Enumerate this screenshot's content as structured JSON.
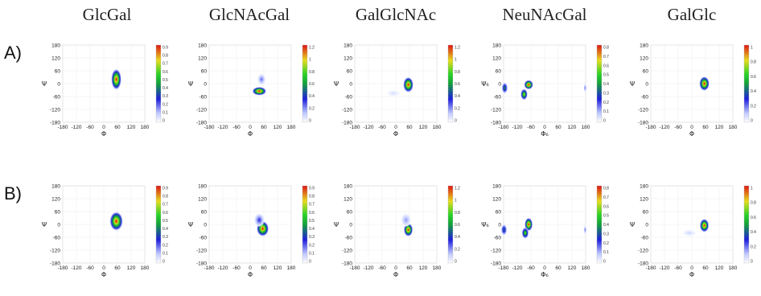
{
  "columns": [
    "GlcGal",
    "GlcNAcGal",
    "GalGlcNAc",
    "NeuNAcGal",
    "GalGlc"
  ],
  "rows": [
    "A)",
    "B)"
  ],
  "chart_data": [
    {
      "row": "A",
      "column": "GlcGal",
      "type": "heatmap",
      "xlabel": "Φ",
      "ylabel": "Ψ",
      "xlim": [
        -180,
        180
      ],
      "ylim": [
        -180,
        180
      ],
      "ticks": [
        "-180",
        "-120",
        "-60",
        "0",
        "60",
        "120",
        "180"
      ],
      "yticks": [
        "180",
        "120",
        "60",
        "0",
        "-60",
        "-120",
        "-180"
      ],
      "colorbar": {
        "max": 0.9,
        "labels": [
          "0.9",
          "0.8",
          "0.7",
          "0.6",
          "0.5",
          "0.4",
          "0.3",
          "0.2",
          "0.1",
          "0"
        ]
      },
      "blobs": [
        {
          "phi": 55,
          "psi": 20,
          "sphi": 10,
          "spsi": 22,
          "peak": 0.9
        }
      ]
    },
    {
      "row": "A",
      "column": "GlcNAcGal",
      "type": "heatmap",
      "xlabel": "Φ",
      "ylabel": "Ψ",
      "xlim": [
        -180,
        180
      ],
      "ylim": [
        -180,
        180
      ],
      "ticks": [
        "-180",
        "-120",
        "-60",
        "0",
        "60",
        "120",
        "180"
      ],
      "yticks": [
        "180",
        "120",
        "60",
        "0",
        "-60",
        "-120",
        "-180"
      ],
      "colorbar": {
        "max": 1.2,
        "labels": [
          "1.2",
          "1",
          "0.8",
          "0.6",
          "0.4",
          "0.2",
          "0"
        ]
      },
      "blobs": [
        {
          "phi": 40,
          "psi": -35,
          "sphi": 14,
          "spsi": 9,
          "peak": 1.2
        },
        {
          "phi": 50,
          "psi": 20,
          "sphi": 8,
          "spsi": 12,
          "peak": 0.25
        }
      ]
    },
    {
      "row": "A",
      "column": "GalGlcNAc",
      "type": "heatmap",
      "xlabel": "Φ",
      "ylabel": "Ψ",
      "xlim": [
        -180,
        180
      ],
      "ylim": [
        -180,
        180
      ],
      "ticks": [
        "-180",
        "-120",
        "-60",
        "0",
        "60",
        "120",
        "180"
      ],
      "yticks": [
        "180",
        "120",
        "60",
        "0",
        "-60",
        "-120",
        "-180"
      ],
      "colorbar": {
        "max": 1.2,
        "labels": [
          "1.2",
          "1",
          "0.8",
          "0.6",
          "0.4",
          "0.2",
          "0"
        ]
      },
      "blobs": [
        {
          "phi": 55,
          "psi": -5,
          "sphi": 10,
          "spsi": 16,
          "peak": 1.2
        },
        {
          "phi": -10,
          "psi": -45,
          "sphi": 14,
          "spsi": 7,
          "peak": 0.08
        }
      ]
    },
    {
      "row": "A",
      "column": "NeuNAcGal",
      "type": "heatmap",
      "xlabel": "Φ₆",
      "ylabel": "Ψ₆",
      "xlim": [
        -180,
        180
      ],
      "ylim": [
        -180,
        180
      ],
      "ticks": [
        "-180",
        "-120",
        "-60",
        "0",
        "60",
        "120",
        "180"
      ],
      "yticks": [
        "180",
        "120",
        "60",
        "0",
        "-60",
        "-120",
        "-180"
      ],
      "colorbar": {
        "max": 0.8,
        "labels": [
          "0.8",
          "0.7",
          "0.6",
          "0.5",
          "0.4",
          "0.3",
          "0.2",
          "0.1",
          "0"
        ]
      },
      "blobs": [
        {
          "phi": -70,
          "psi": -5,
          "sphi": 9,
          "spsi": 10,
          "peak": 0.8
        },
        {
          "phi": -90,
          "psi": -50,
          "sphi": 7,
          "spsi": 12,
          "peak": 0.6
        },
        {
          "phi": -175,
          "psi": -20,
          "sphi": 6,
          "spsi": 12,
          "peak": 0.4
        },
        {
          "phi": 178,
          "psi": -20,
          "sphi": 3,
          "spsi": 10,
          "peak": 0.15
        }
      ]
    },
    {
      "row": "A",
      "column": "GalGlc",
      "type": "heatmap",
      "xlabel": "Φ",
      "ylabel": "Ψ",
      "xlim": [
        -180,
        180
      ],
      "ylim": [
        -180,
        180
      ],
      "ticks": [
        "-180",
        "-120",
        "-60",
        "0",
        "60",
        "120",
        "180"
      ],
      "yticks": [
        "180",
        "120",
        "60",
        "0",
        "-60",
        "-120",
        "-180"
      ],
      "colorbar": {
        "max": 1,
        "labels": [
          "1",
          "0.8",
          "0.6",
          "0.4",
          "0.2",
          "0"
        ]
      },
      "blobs": [
        {
          "phi": 55,
          "psi": 0,
          "sphi": 10,
          "spsi": 15,
          "peak": 1.0
        }
      ]
    },
    {
      "row": "B",
      "column": "GlcGal",
      "type": "heatmap",
      "xlabel": "Φ",
      "ylabel": "Ψ",
      "xlim": [
        -180,
        180
      ],
      "ylim": [
        -180,
        180
      ],
      "ticks": [
        "-180",
        "-120",
        "-60",
        "0",
        "60",
        "120",
        "180"
      ],
      "yticks": [
        "180",
        "120",
        "60",
        "0",
        "-60",
        "-120",
        "-180"
      ],
      "colorbar": {
        "max": 0.9,
        "labels": [
          "0.9",
          "0.8",
          "0.7",
          "0.6",
          "0.5",
          "0.4",
          "0.3",
          "0.2",
          "0.1",
          "0"
        ]
      },
      "blobs": [
        {
          "phi": 55,
          "psi": 15,
          "sphi": 13,
          "spsi": 20,
          "peak": 0.9
        }
      ]
    },
    {
      "row": "B",
      "column": "GlcNAcGal",
      "type": "heatmap",
      "xlabel": "Φ",
      "ylabel": "Ψ",
      "xlim": [
        -180,
        180
      ],
      "ylim": [
        -180,
        180
      ],
      "ticks": [
        "-180",
        "-120",
        "-60",
        "0",
        "60",
        "120",
        "180"
      ],
      "yticks": [
        "180",
        "120",
        "60",
        "0",
        "-60",
        "-120",
        "-180"
      ],
      "colorbar": {
        "max": 0.9,
        "labels": [
          "0.9",
          "0.8",
          "0.7",
          "0.6",
          "0.5",
          "0.4",
          "0.3",
          "0.2",
          "0.1",
          "0"
        ]
      },
      "blobs": [
        {
          "phi": 55,
          "psi": -20,
          "sphi": 12,
          "spsi": 16,
          "peak": 0.9
        },
        {
          "phi": 40,
          "psi": 20,
          "sphi": 10,
          "spsi": 14,
          "peak": 0.25
        }
      ]
    },
    {
      "row": "B",
      "column": "GalGlcNAc",
      "type": "heatmap",
      "xlabel": "Φ",
      "ylabel": "Ψ",
      "xlim": [
        -180,
        180
      ],
      "ylim": [
        -180,
        180
      ],
      "ticks": [
        "-180",
        "-120",
        "-60",
        "0",
        "60",
        "120",
        "180"
      ],
      "yticks": [
        "180",
        "120",
        "60",
        "0",
        "-60",
        "-120",
        "-180"
      ],
      "colorbar": {
        "max": 1.2,
        "labels": [
          "1.2",
          "1",
          "0.8",
          "0.6",
          "0.4",
          "0.2",
          "0"
        ]
      },
      "blobs": [
        {
          "phi": 55,
          "psi": -25,
          "sphi": 9,
          "spsi": 14,
          "peak": 1.2
        },
        {
          "phi": 45,
          "psi": 20,
          "sphi": 10,
          "spsi": 14,
          "peak": 0.2
        }
      ]
    },
    {
      "row": "B",
      "column": "NeuNAcGal",
      "type": "heatmap",
      "xlabel": "Φ₆",
      "ylabel": "Ψ₆",
      "xlim": [
        -180,
        180
      ],
      "ylim": [
        -180,
        180
      ],
      "ticks": [
        "-180",
        "-120",
        "-60",
        "0",
        "60",
        "120",
        "180"
      ],
      "yticks": [
        "180",
        "120",
        "60",
        "0",
        "-60",
        "-120",
        "-180"
      ],
      "colorbar": {
        "max": 0.8,
        "labels": [
          "0.8",
          "0.7",
          "0.6",
          "0.5",
          "0.4",
          "0.3",
          "0.2",
          "0.1",
          "0"
        ]
      },
      "blobs": [
        {
          "phi": -70,
          "psi": 0,
          "sphi": 8,
          "spsi": 14,
          "peak": 0.8
        },
        {
          "phi": -85,
          "psi": -40,
          "sphi": 7,
          "spsi": 12,
          "peak": 0.55
        },
        {
          "phi": -178,
          "psi": -25,
          "sphi": 6,
          "spsi": 12,
          "peak": 0.35
        },
        {
          "phi": 178,
          "psi": -25,
          "sphi": 3,
          "spsi": 10,
          "peak": 0.15
        }
      ]
    },
    {
      "row": "B",
      "column": "GalGlc",
      "type": "heatmap",
      "xlabel": "Φ",
      "ylabel": "Ψ",
      "xlim": [
        -180,
        180
      ],
      "ylim": [
        -180,
        180
      ],
      "ticks": [
        "-180",
        "-120",
        "-60",
        "0",
        "60",
        "120",
        "180"
      ],
      "yticks": [
        "180",
        "120",
        "60",
        "0",
        "-60",
        "-120",
        "-180"
      ],
      "colorbar": {
        "max": 1,
        "labels": [
          "1",
          "0.8",
          "0.6",
          "0.4",
          "0.2",
          "0"
        ]
      },
      "blobs": [
        {
          "phi": 55,
          "psi": -5,
          "sphi": 9,
          "spsi": 14,
          "peak": 1.0
        },
        {
          "phi": -10,
          "psi": -40,
          "sphi": 14,
          "spsi": 7,
          "peak": 0.08
        }
      ]
    }
  ]
}
